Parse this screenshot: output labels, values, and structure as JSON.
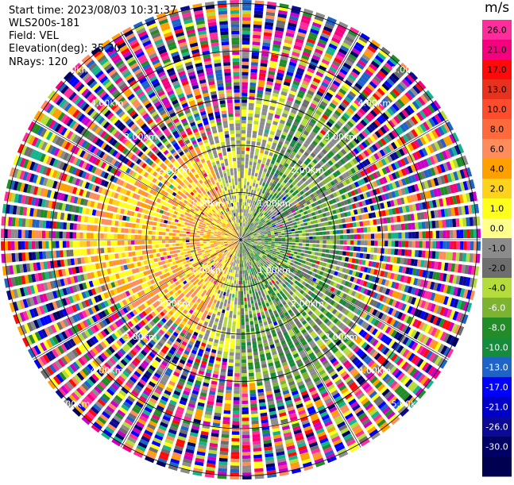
{
  "info": {
    "start_time": "Start time: 2023/08/03 10:31:37",
    "device": "WLS200s-181",
    "field": "Field: VEL",
    "elevation": "Elevation(deg): 35.30",
    "nrays": "NRays: 120"
  },
  "colorbar": {
    "unit": "m/s",
    "ticks": [
      "26.0",
      "21.0",
      "17.0",
      "13.0",
      "10.0",
      "8.0",
      "6.0",
      "4.0",
      "2.0",
      "1.0",
      "0.0",
      "-1.0",
      "-2.0",
      "-4.0",
      "-6.0",
      "-8.0",
      "-10.0",
      "-13.0",
      "-17.0",
      "-21.0",
      "-26.0",
      "-30.0"
    ],
    "colors": [
      "#ff2d9b",
      "#f5007f",
      "#ff0a0a",
      "#e8321e",
      "#ff4c2c",
      "#ff6a3d",
      "#ff8c5a",
      "#ffa000",
      "#ffd21e",
      "#ffff1e",
      "#ffff8c",
      "#8c8c8c",
      "#6e6e6e",
      "#b4dc3c",
      "#7cb432",
      "#228c28",
      "#148c3c",
      "#1e64c8",
      "#0000ff",
      "#0000c8",
      "#0a0a96",
      "#000064",
      "#000050"
    ]
  },
  "chart_data": {
    "type": "polar-velocity-ppi",
    "field": "VEL",
    "units": "m/s",
    "n_rays": 120,
    "elevation_deg": 35.3,
    "range_rings_km": [
      1.0,
      2.0,
      3.0,
      4.0,
      5.0
    ],
    "ring_labels": [
      "1.00km",
      "2.00km",
      "3.00km",
      "4.00km",
      "5.00km"
    ],
    "inner_structure": {
      "positive_sector_deg": [
        200,
        340
      ],
      "negative_sector_deg": [
        20,
        180
      ]
    }
  }
}
